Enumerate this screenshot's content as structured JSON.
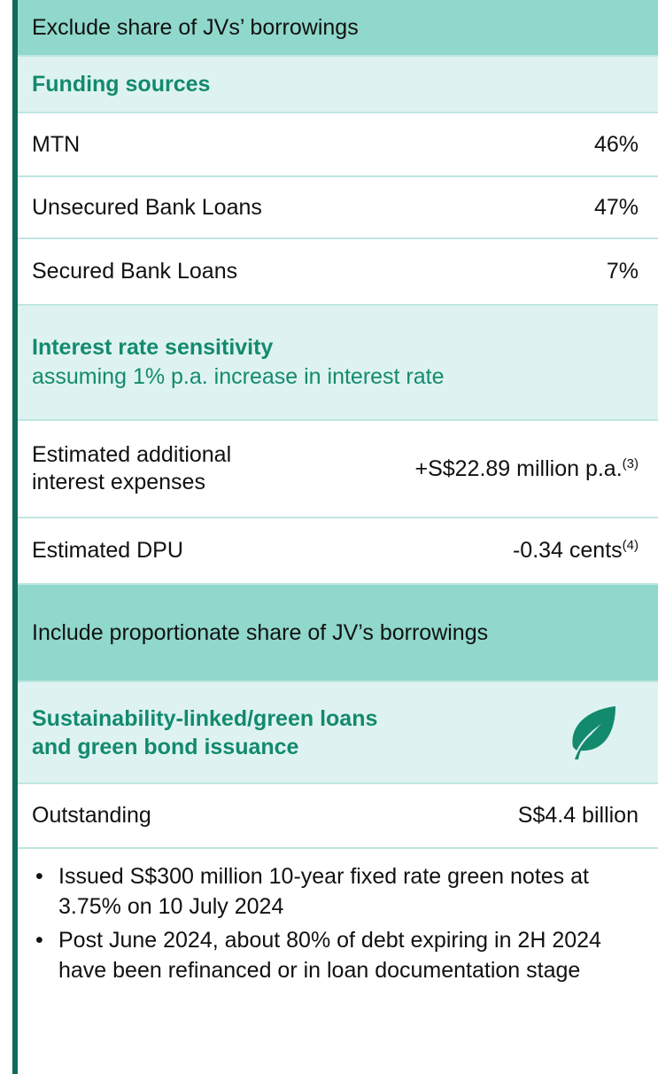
{
  "header": {
    "title": "Exclude share of JVs’ borrowings"
  },
  "funding_sources": {
    "title": "Funding sources",
    "rows": [
      {
        "label": "MTN",
        "value": "46%"
      },
      {
        "label": "Unsecured Bank Loans",
        "value": "47%"
      },
      {
        "label": "Secured Bank Loans",
        "value": "7%"
      }
    ]
  },
  "interest_rate_sensitivity": {
    "title": "Interest rate sensitivity",
    "subtitle": "assuming 1% p.a. increase in interest rate",
    "rows": [
      {
        "label": "Estimated additional interest expenses",
        "value": "+S$22.89 million p.a.",
        "note": "(3)"
      },
      {
        "label": "Estimated DPU",
        "value": "-0.34 cents",
        "note": "(4)"
      }
    ]
  },
  "include_header": {
    "title": "Include proportionate share of JV’s borrowings"
  },
  "sustainability": {
    "title": "Sustainability-linked/green loans and green bond issuance",
    "rows": [
      {
        "label": "Outstanding",
        "value": "S$4.4 billion"
      }
    ],
    "bullets": [
      "Issued S$300 million 10-year fixed rate green notes at 3.75% on 10 July 2024",
      "Post June 2024, about 80% of debt expiring in 2H 2024 have been refinanced or in loan documentation stage"
    ]
  }
}
